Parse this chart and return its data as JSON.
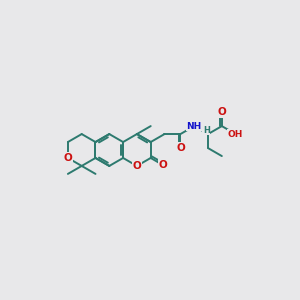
{
  "bg_color": "#e8e8ea",
  "bond_color": "#2d7a6f",
  "bond_width": 1.4,
  "O_color": "#cc1111",
  "N_color": "#1111cc",
  "font_size": 7.5,
  "font_size_small": 6.5,
  "figsize": [
    3.0,
    3.0
  ],
  "dpi": 100,
  "xlim": [
    0.05,
    1.75
  ],
  "ylim": [
    0.15,
    0.85
  ]
}
